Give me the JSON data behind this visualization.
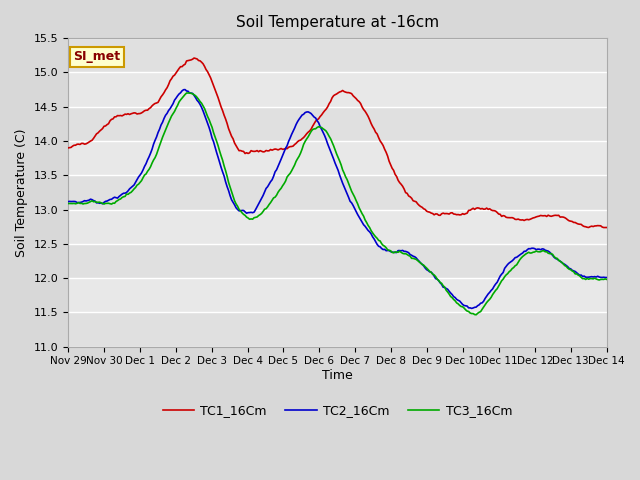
{
  "title": "Soil Temperature at -16cm",
  "xlabel": "Time",
  "ylabel": "Soil Temperature (C)",
  "ylim": [
    11.0,
    15.5
  ],
  "yticks": [
    11.0,
    11.5,
    12.0,
    12.5,
    13.0,
    13.5,
    14.0,
    14.5,
    15.0,
    15.5
  ],
  "xtick_labels": [
    "Nov 29",
    "Nov 30",
    "Dec 1",
    "Dec 2",
    "Dec 3",
    "Dec 4",
    "Dec 5",
    "Dec 6",
    "Dec 7",
    "Dec 8",
    "Dec 9",
    "Dec 10",
    "Dec 11",
    "Dec 12",
    "Dec 13",
    "Dec 14"
  ],
  "colors": {
    "TC1": "#cc0000",
    "TC2": "#0000cc",
    "TC3": "#00aa00"
  },
  "legend_labels": [
    "TC1_16Cm",
    "TC2_16Cm",
    "TC3_16Cm"
  ],
  "fig_bg": "#d8d8d8",
  "plot_bg": "#e8e8e8",
  "annotation_text": "SI_met",
  "annotation_bg": "#ffffcc",
  "annotation_border": "#cc9900",
  "annotation_text_color": "#880000"
}
